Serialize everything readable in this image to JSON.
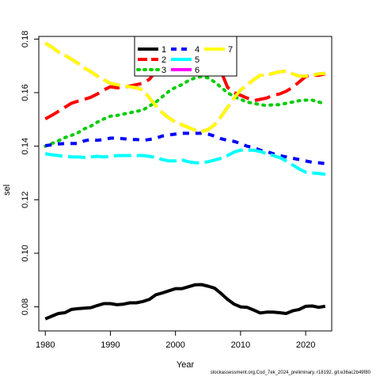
{
  "chart_data": {
    "type": "line",
    "xlabel": "Year",
    "ylabel": "sel",
    "xlim": [
      1979,
      2024
    ],
    "ylim": [
      0.071,
      0.181
    ],
    "x_ticks": [
      1980,
      1990,
      2000,
      2010,
      2020
    ],
    "y_ticks": [
      0.08,
      0.1,
      0.12,
      0.14,
      0.16,
      0.18
    ],
    "y_tick_labels": [
      "0.08",
      "0.10",
      "0.12",
      "0.14",
      "0.16",
      "0.18"
    ],
    "legend_position": "top-center",
    "x": [
      1980,
      1981,
      1982,
      1983,
      1984,
      1985,
      1986,
      1987,
      1988,
      1989,
      1990,
      1991,
      1992,
      1993,
      1994,
      1995,
      1996,
      1997,
      1998,
      1999,
      2000,
      2001,
      2002,
      2003,
      2004,
      2005,
      2006,
      2007,
      2008,
      2009,
      2010,
      2011,
      2012,
      2013,
      2014,
      2015,
      2016,
      2017,
      2018,
      2019,
      2020,
      2021,
      2022,
      2023
    ],
    "series": [
      {
        "name": "1",
        "color": "#000000",
        "dash": "solid",
        "values": [
          0.0755,
          0.0765,
          0.0775,
          0.0778,
          0.079,
          0.0793,
          0.0795,
          0.0797,
          0.0805,
          0.0812,
          0.0812,
          0.0808,
          0.081,
          0.0815,
          0.0815,
          0.082,
          0.0828,
          0.0845,
          0.0852,
          0.086,
          0.0868,
          0.0868,
          0.0875,
          0.0882,
          0.0883,
          0.0877,
          0.087,
          0.085,
          0.0828,
          0.081,
          0.08,
          0.0798,
          0.0788,
          0.0777,
          0.078,
          0.078,
          0.0778,
          0.0775,
          0.0785,
          0.079,
          0.0802,
          0.0803,
          0.0798,
          0.0802
        ]
      },
      {
        "name": "2",
        "color": "#ff0000",
        "dash": "long",
        "values": [
          0.1502,
          0.1515,
          0.153,
          0.1545,
          0.156,
          0.1568,
          0.1575,
          0.1583,
          0.1595,
          0.161,
          0.1622,
          0.1618,
          0.162,
          0.1625,
          0.163,
          0.1635,
          0.165,
          0.168,
          0.17,
          0.172,
          0.173,
          0.1725,
          0.172,
          0.171,
          0.17,
          0.169,
          0.1685,
          0.168,
          0.162,
          0.16,
          0.159,
          0.158,
          0.157,
          0.1575,
          0.158,
          0.159,
          0.1595,
          0.1605,
          0.162,
          0.164,
          0.166,
          0.1665,
          0.1665,
          0.167
        ]
      },
      {
        "name": "3",
        "color": "#00cd00",
        "dash": "dot",
        "values": [
          0.14,
          0.141,
          0.142,
          0.1432,
          0.144,
          0.145,
          0.1465,
          0.1475,
          0.149,
          0.1502,
          0.1512,
          0.1515,
          0.152,
          0.1525,
          0.153,
          0.1535,
          0.155,
          0.1565,
          0.1585,
          0.1605,
          0.162,
          0.163,
          0.1645,
          0.1655,
          0.166,
          0.1655,
          0.164,
          0.162,
          0.16,
          0.1585,
          0.1575,
          0.1565,
          0.156,
          0.1555,
          0.1552,
          0.1555,
          0.1555,
          0.156,
          0.1565,
          0.157,
          0.1572,
          0.1572,
          0.1565,
          0.1558
        ]
      },
      {
        "name": "4",
        "color": "#0000ff",
        "dash": "dash",
        "values": [
          0.1402,
          0.1405,
          0.1408,
          0.141,
          0.141,
          0.141,
          0.142,
          0.1425,
          0.1422,
          0.1425,
          0.143,
          0.143,
          0.1428,
          0.1425,
          0.1425,
          0.1422,
          0.1425,
          0.143,
          0.1438,
          0.1442,
          0.1445,
          0.1448,
          0.1448,
          0.1448,
          0.1448,
          0.1445,
          0.1438,
          0.1428,
          0.1422,
          0.1418,
          0.141,
          0.14,
          0.1395,
          0.1385,
          0.138,
          0.1372,
          0.1365,
          0.136,
          0.1355,
          0.135,
          0.1345,
          0.134,
          0.1338,
          0.1335
        ]
      },
      {
        "name": "5",
        "color": "#00ffff",
        "dash": "longdash",
        "values": [
          0.1372,
          0.1368,
          0.1365,
          0.1362,
          0.136,
          0.136,
          0.1358,
          0.136,
          0.1362,
          0.136,
          0.1362,
          0.1365,
          0.1365,
          0.1365,
          0.1365,
          0.1365,
          0.1362,
          0.1358,
          0.135,
          0.1345,
          0.1345,
          0.1348,
          0.1342,
          0.1338,
          0.1338,
          0.1342,
          0.1348,
          0.1355,
          0.1365,
          0.1378,
          0.1385,
          0.1385,
          0.1385,
          0.138,
          0.1372,
          0.1365,
          0.1358,
          0.1345,
          0.133,
          0.1315,
          0.1303,
          0.13,
          0.1298,
          0.1295
        ]
      },
      {
        "name": "6",
        "color": "#ff00ff",
        "dash": "longdash",
        "values": [
          0.1785,
          0.177,
          0.1752,
          0.174,
          0.1725,
          0.171,
          0.1692,
          0.1678,
          0.1662,
          0.1648,
          0.1635,
          0.163,
          0.1625,
          0.1622,
          0.1618,
          0.161,
          0.158,
          0.155,
          0.1525,
          0.1505,
          0.149,
          0.148,
          0.147,
          0.146,
          0.1455,
          0.1462,
          0.148,
          0.151,
          0.1545,
          0.158,
          0.161,
          0.1628,
          0.1648,
          0.1665,
          0.1665,
          0.1672,
          0.1678,
          0.168,
          0.167,
          0.1662,
          0.1662,
          0.1665,
          0.167,
          0.1672
        ]
      },
      {
        "name": "7",
        "color": "#ffff00",
        "dash": "longdash",
        "values": [
          0.1785,
          0.177,
          0.1752,
          0.174,
          0.1725,
          0.171,
          0.1692,
          0.1678,
          0.1662,
          0.1648,
          0.1635,
          0.163,
          0.1625,
          0.1622,
          0.1618,
          0.161,
          0.158,
          0.155,
          0.1525,
          0.1505,
          0.149,
          0.148,
          0.147,
          0.146,
          0.1455,
          0.1462,
          0.148,
          0.151,
          0.1545,
          0.158,
          0.161,
          0.1628,
          0.1648,
          0.1665,
          0.1665,
          0.1672,
          0.1678,
          0.168,
          0.167,
          0.1662,
          0.1662,
          0.1665,
          0.167,
          0.1672
        ]
      }
    ]
  },
  "footer": "stockassessment.org,Cod_7ek_2024_preliminary, r18192, git:e36ac2b49f80"
}
